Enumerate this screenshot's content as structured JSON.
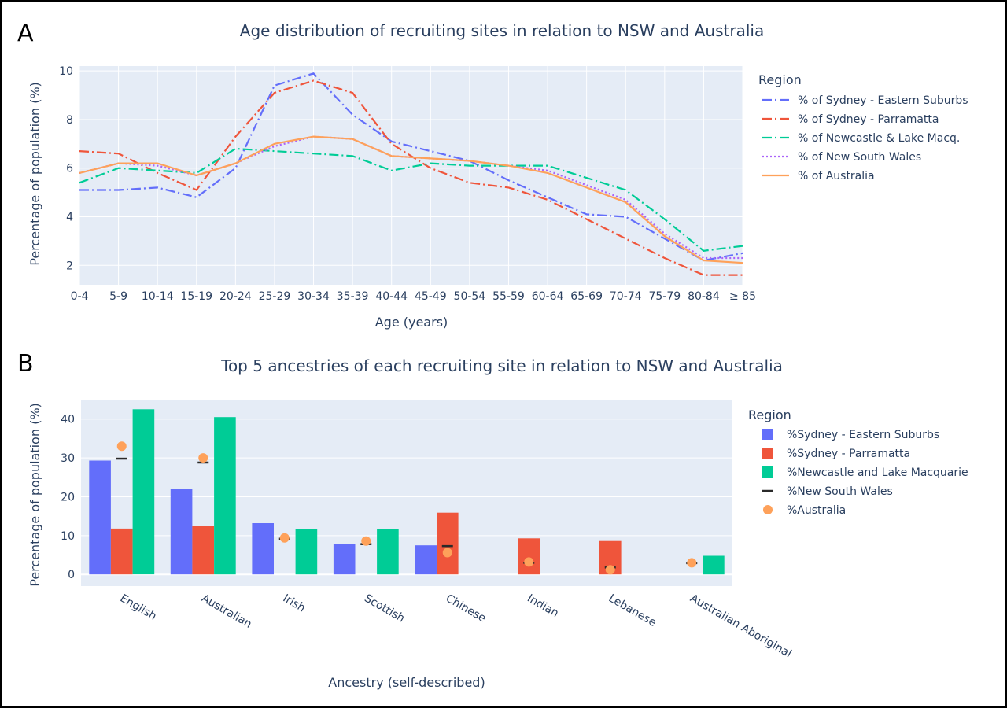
{
  "panel_a": {
    "letter": "A",
    "legend_title": "Region",
    "chart_data": {
      "type": "line",
      "title": "Age distribution of recruiting sites in relation to NSW and Australia",
      "xlabel": "Age (years)",
      "ylabel": "Percentage of population (%)",
      "categories": [
        "0-4",
        "5-9",
        "10-14",
        "15-19",
        "20-24",
        "25-29",
        "30-34",
        "35-39",
        "40-44",
        "45-49",
        "50-54",
        "55-59",
        "60-64",
        "65-69",
        "70-74",
        "75-79",
        "80-84",
        "≥ 85"
      ],
      "ylim": [
        1.2,
        10.2
      ],
      "yticks": [
        2,
        4,
        6,
        8,
        10
      ],
      "grid": true,
      "legend_position": "right",
      "series": [
        {
          "name": "% of Sydney - Eastern Suburbs",
          "color": "#636efa",
          "dash": "12,4,2,4",
          "values": [
            5.1,
            5.1,
            5.2,
            4.8,
            6.0,
            9.4,
            9.9,
            8.2,
            7.1,
            6.7,
            6.3,
            5.5,
            4.8,
            4.1,
            4.0,
            3.1,
            2.2,
            2.5
          ]
        },
        {
          "name": "% of Sydney - Parramatta",
          "color": "#ef553b",
          "dash": "12,4,2,4",
          "values": [
            6.7,
            6.6,
            5.8,
            5.1,
            7.3,
            9.1,
            9.6,
            9.1,
            7.0,
            6.0,
            5.4,
            5.2,
            4.7,
            3.9,
            3.1,
            2.3,
            1.6,
            1.6
          ]
        },
        {
          "name": "% of Newcastle & Lake Macq.",
          "color": "#00cc96",
          "dash": "12,4,2,4",
          "values": [
            5.4,
            6.0,
            5.9,
            5.8,
            6.8,
            6.7,
            6.6,
            6.5,
            5.9,
            6.2,
            6.1,
            6.1,
            6.1,
            5.6,
            5.1,
            3.9,
            2.6,
            2.8
          ]
        },
        {
          "name": "% of New South Wales",
          "color": "#ab63fa",
          "dash": "2,3",
          "values": [
            5.8,
            6.2,
            6.1,
            5.7,
            6.2,
            6.9,
            7.3,
            7.2,
            6.5,
            6.4,
            6.3,
            6.1,
            5.9,
            5.3,
            4.7,
            3.3,
            2.3,
            2.3
          ]
        },
        {
          "name": "% of Australia",
          "color": "#fea15a",
          "dash": "",
          "values": [
            5.8,
            6.2,
            6.2,
            5.7,
            6.2,
            7.0,
            7.3,
            7.2,
            6.5,
            6.4,
            6.3,
            6.1,
            5.8,
            5.2,
            4.6,
            3.2,
            2.2,
            2.1
          ]
        }
      ]
    }
  },
  "panel_b": {
    "letter": "B",
    "legend_title": "Region",
    "chart_data": {
      "type": "bar",
      "title": "Top 5 ancestries of each recruiting site in relation to NSW and Australia",
      "xlabel": "Ancestry (self-described)",
      "ylabel": "Percentage of population (%)",
      "categories": [
        "English",
        "Australian",
        "Irish",
        "Scottish",
        "Chinese",
        "Indian",
        "Lebanese",
        "Australian Aboriginal"
      ],
      "ylim": [
        -3,
        45
      ],
      "yticks": [
        0,
        10,
        20,
        30,
        40
      ],
      "grid": true,
      "legend_position": "right",
      "bar_series": [
        {
          "name": "%Sydney - Eastern Suburbs",
          "color": "#636efa",
          "values": [
            29.3,
            22.0,
            13.2,
            7.9,
            7.5,
            null,
            null,
            null
          ]
        },
        {
          "name": "%Sydney - Parramatta",
          "color": "#ef553b",
          "values": [
            11.8,
            12.4,
            null,
            null,
            15.9,
            9.3,
            8.6,
            null
          ]
        },
        {
          "name": "%Newcastle and Lake Macquarie",
          "color": "#00cc96",
          "values": [
            42.5,
            40.5,
            11.6,
            11.7,
            null,
            null,
            null,
            4.8
          ]
        }
      ],
      "marker_series": [
        {
          "name": "%New South Wales",
          "symbol": "dash",
          "color": "#2a2a2a",
          "values": [
            29.8,
            28.8,
            9.2,
            7.8,
            7.3,
            3.0,
            1.8,
            2.9
          ]
        },
        {
          "name": "%Australia",
          "symbol": "circle",
          "color": "#fea15a",
          "values": [
            33.0,
            30.0,
            9.4,
            8.6,
            5.6,
            3.2,
            1.2,
            3.0
          ]
        }
      ]
    }
  }
}
